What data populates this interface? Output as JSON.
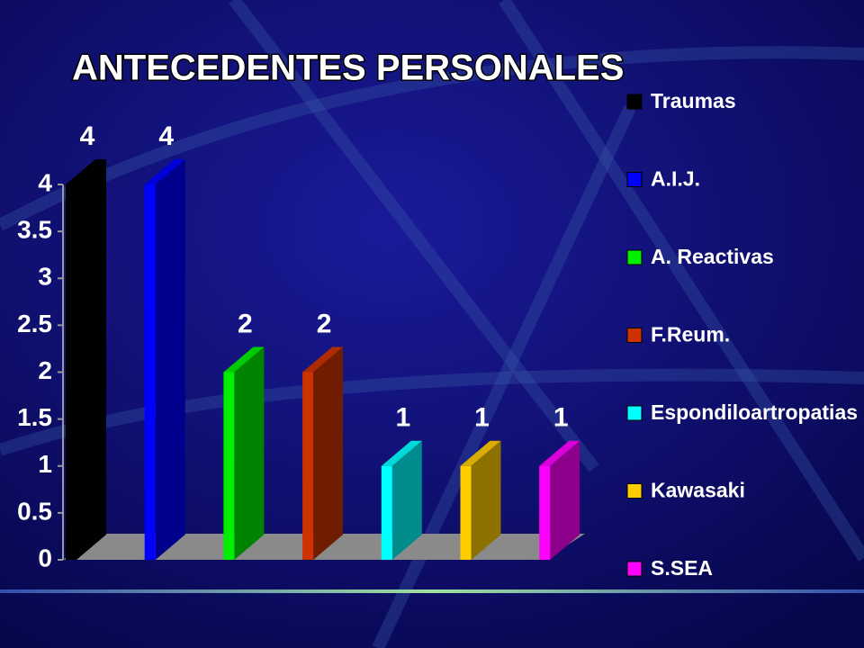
{
  "chart_data": {
    "type": "bar3d",
    "title": "ANTECEDENTES PERSONALES",
    "series": [
      {
        "name": "Traumas",
        "color": "#000000",
        "values": [
          4
        ]
      },
      {
        "name": "A.I.J.",
        "color": "#0000ff",
        "values": [
          4
        ]
      },
      {
        "name": "A. Reactivas",
        "color": "#00ee00",
        "values": [
          2
        ]
      },
      {
        "name": "F.Reum.",
        "color": "#cc3300",
        "values": [
          2
        ]
      },
      {
        "name": "Espondiloartropatias",
        "color": "#00ffff",
        "values": [
          1
        ]
      },
      {
        "name": "Kawasaki",
        "color": "#ffcc00",
        "values": [
          1
        ]
      },
      {
        "name": "S.SEA",
        "color": "#ff00ff",
        "values": [
          1
        ]
      }
    ],
    "ylim": [
      0,
      4
    ],
    "yticks": [
      0,
      0.5,
      1,
      1.5,
      2,
      2.5,
      3,
      3.5,
      4
    ],
    "legend": "right"
  }
}
